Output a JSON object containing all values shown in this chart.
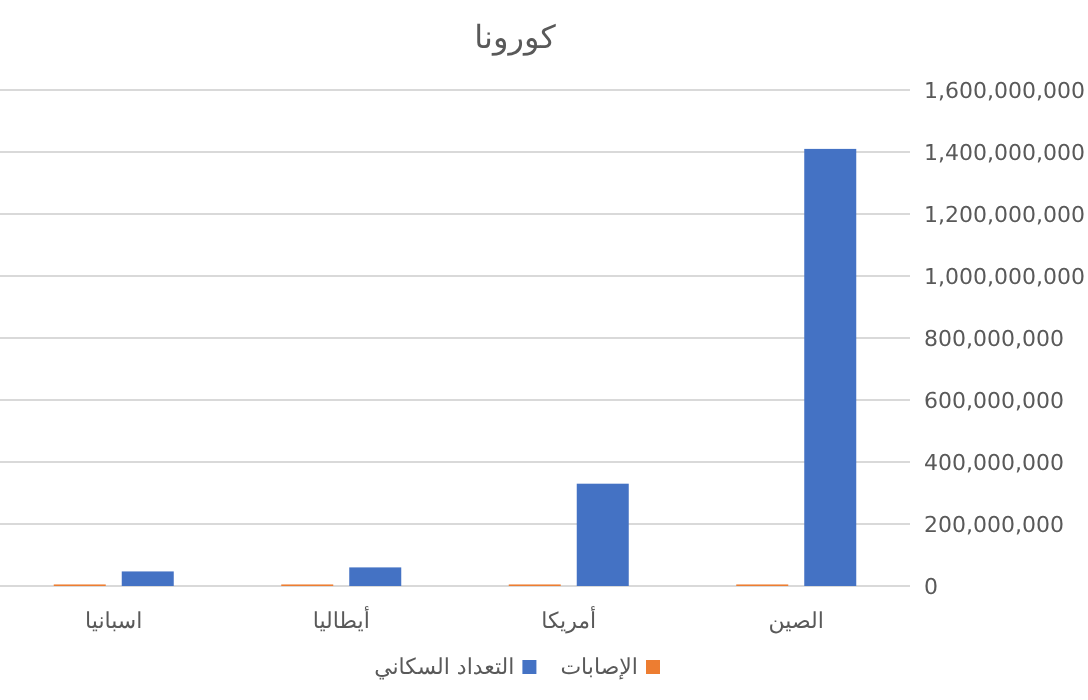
{
  "chart_data": {
    "type": "bar",
    "title": "كورونا",
    "categories": [
      "اسبانيا",
      "أيطاليا",
      "أمريكا",
      "الصين"
    ],
    "series": [
      {
        "name": "الإصابات",
        "color": "#ed7d31",
        "values": [
          5000000,
          5000000,
          5000000,
          5000000
        ]
      },
      {
        "name": "التعداد السكاني",
        "color": "#4472c4",
        "values": [
          47000000,
          60000000,
          330000000,
          1410000000
        ]
      }
    ],
    "ylim": [
      0,
      1600000000
    ],
    "yticks": [
      {
        "value": 0,
        "label": "0"
      },
      {
        "value": 200000000,
        "label": "200,000,000"
      },
      {
        "value": 400000000,
        "label": "400,000,000"
      },
      {
        "value": 600000000,
        "label": "600,000,000"
      },
      {
        "value": 800000000,
        "label": "800,000,000"
      },
      {
        "value": 1000000000,
        "label": "1,000,000,000"
      },
      {
        "value": 1200000000,
        "label": "1,200,000,000"
      },
      {
        "value": 1400000000,
        "label": "1,400,000,000"
      },
      {
        "value": 1600000000,
        "label": "1,600,000,000"
      }
    ],
    "grid": "y",
    "legend": "bottom"
  }
}
